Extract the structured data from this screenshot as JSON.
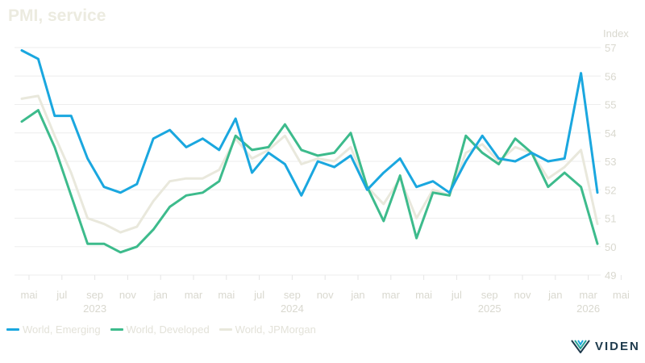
{
  "chart_data": {
    "type": "line",
    "title": "PMI, service",
    "ylabel": "Index",
    "ylim": [
      49,
      57
    ],
    "yticks": [
      49,
      50,
      51,
      52,
      53,
      54,
      55,
      56,
      57
    ],
    "xticks": [
      {
        "month": "mai",
        "year": ""
      },
      {
        "month": "jul",
        "year": ""
      },
      {
        "month": "sep",
        "year": "2023"
      },
      {
        "month": "nov",
        "year": ""
      },
      {
        "month": "jan",
        "year": ""
      },
      {
        "month": "mar",
        "year": ""
      },
      {
        "month": "mai",
        "year": ""
      },
      {
        "month": "jul",
        "year": ""
      },
      {
        "month": "sep",
        "year": "2024"
      },
      {
        "month": "nov",
        "year": ""
      },
      {
        "month": "jan",
        "year": ""
      },
      {
        "month": "mar",
        "year": ""
      },
      {
        "month": "mai",
        "year": ""
      },
      {
        "month": "jul",
        "year": ""
      },
      {
        "month": "sep",
        "year": "2025"
      },
      {
        "month": "nov",
        "year": ""
      },
      {
        "month": "jan",
        "year": ""
      },
      {
        "month": "mar",
        "year": "2026"
      },
      {
        "month": "mai",
        "year": ""
      }
    ],
    "x": [
      "2023-04",
      "2023-05",
      "2023-06",
      "2023-07",
      "2023-08",
      "2023-09",
      "2023-10",
      "2023-11",
      "2023-12",
      "2024-01",
      "2024-02",
      "2024-03",
      "2024-04",
      "2024-05",
      "2024-06",
      "2024-07",
      "2024-08",
      "2024-09",
      "2024-10",
      "2024-11",
      "2024-12",
      "2025-01",
      "2025-02",
      "2025-03",
      "2025-04",
      "2025-05",
      "2025-06",
      "2025-07",
      "2025-08",
      "2025-09",
      "2025-10",
      "2025-11",
      "2025-12",
      "2026-01",
      "2026-02",
      "2026-03"
    ],
    "series": [
      {
        "name": "World, Emerging",
        "color": "#1aa7df",
        "values": [
          56.9,
          56.6,
          54.6,
          54.6,
          53.1,
          52.1,
          51.9,
          52.2,
          53.8,
          54.1,
          53.5,
          53.8,
          53.4,
          54.5,
          52.6,
          53.3,
          52.9,
          51.8,
          53.0,
          52.8,
          53.2,
          52.0,
          52.6,
          53.1,
          52.1,
          52.3,
          51.9,
          53.0,
          53.9,
          53.1,
          53.0,
          53.3,
          53.0,
          53.1,
          56.1,
          51.9
        ]
      },
      {
        "name": "World, Developed",
        "color": "#3dbb8c",
        "values": [
          54.4,
          54.8,
          53.5,
          51.8,
          50.1,
          50.1,
          49.8,
          50.0,
          50.6,
          51.4,
          51.8,
          51.9,
          52.3,
          53.9,
          53.4,
          53.5,
          54.3,
          53.4,
          53.2,
          53.3,
          54.0,
          52.1,
          50.9,
          52.5,
          50.3,
          51.9,
          51.8,
          53.9,
          53.3,
          52.9,
          53.8,
          53.3,
          52.1,
          52.6,
          52.1,
          50.1
        ]
      },
      {
        "name": "World, JPMorgan",
        "color": "#e9e8dc",
        "values": [
          55.2,
          55.3,
          53.9,
          52.6,
          51.0,
          50.8,
          50.5,
          50.7,
          51.6,
          52.3,
          52.4,
          52.4,
          52.7,
          53.8,
          53.1,
          53.4,
          53.9,
          52.9,
          53.1,
          53.0,
          53.5,
          52.1,
          51.5,
          52.4,
          51.0,
          52.0,
          51.8,
          53.3,
          53.6,
          53.0,
          53.5,
          53.3,
          52.4,
          52.8,
          53.4,
          50.8
        ]
      }
    ]
  },
  "logo": {
    "text": "VIDEN"
  }
}
